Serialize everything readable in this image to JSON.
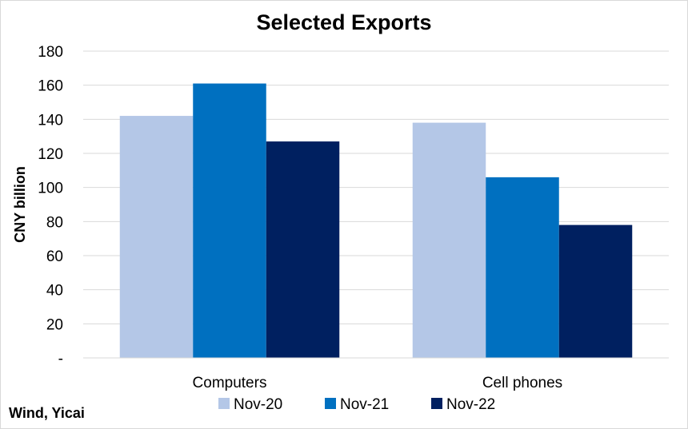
{
  "chart_data": {
    "type": "bar",
    "title": "Selected Exports",
    "ylabel": "CNY billion",
    "xlabel": "",
    "categories": [
      "Computers",
      "Cell phones"
    ],
    "series": [
      {
        "name": "Nov-20",
        "color": "#b4c7e7",
        "values": [
          142,
          138
        ]
      },
      {
        "name": "Nov-21",
        "color": "#0070c0",
        "values": [
          161,
          106
        ]
      },
      {
        "name": "Nov-22",
        "color": "#002060",
        "values": [
          127,
          78
        ]
      }
    ],
    "ylim": [
      0,
      180
    ],
    "yticks": [
      0,
      20,
      40,
      60,
      80,
      100,
      120,
      140,
      160,
      180
    ],
    "ytick_labels": [
      "-",
      "20",
      "40",
      "60",
      "80",
      "100",
      "120",
      "140",
      "160",
      "180"
    ],
    "grid": true,
    "legend_position": "bottom",
    "source": "Wind, Yicai"
  }
}
